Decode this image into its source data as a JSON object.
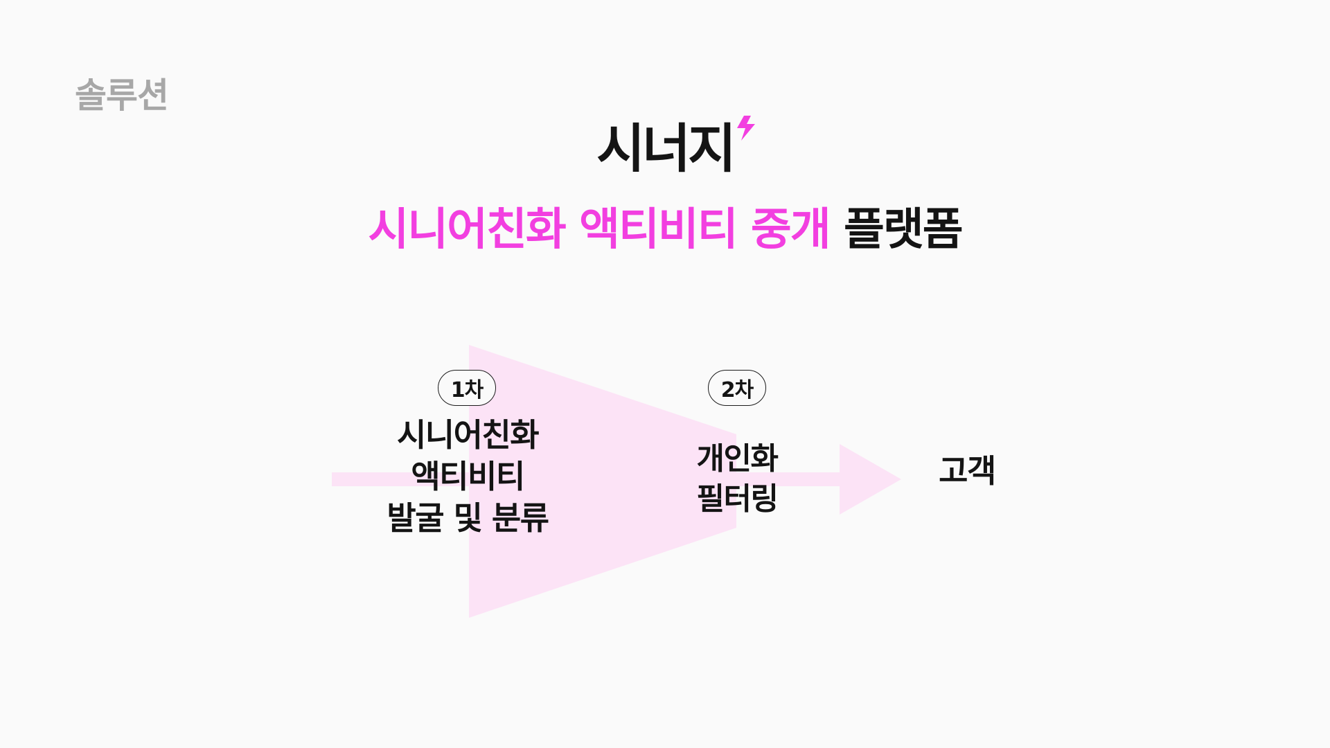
{
  "section_label": "솔루션",
  "logo": {
    "text": "시너지",
    "bolt_color": "#f23fe0"
  },
  "subtitle": {
    "accent_part": "시니어친화 액티비티 중개",
    "dark_part": "플랫폼",
    "accent_color": "#f23fe0"
  },
  "flow": {
    "stage1": {
      "badge": "1차",
      "lines": [
        "시니어친화",
        "액티비티",
        "발굴 및 분류"
      ]
    },
    "stage2": {
      "badge": "2차",
      "lines": [
        "개인화",
        "필터링"
      ]
    },
    "output": {
      "label": "고객"
    },
    "shape_color": "#fce3f6"
  }
}
